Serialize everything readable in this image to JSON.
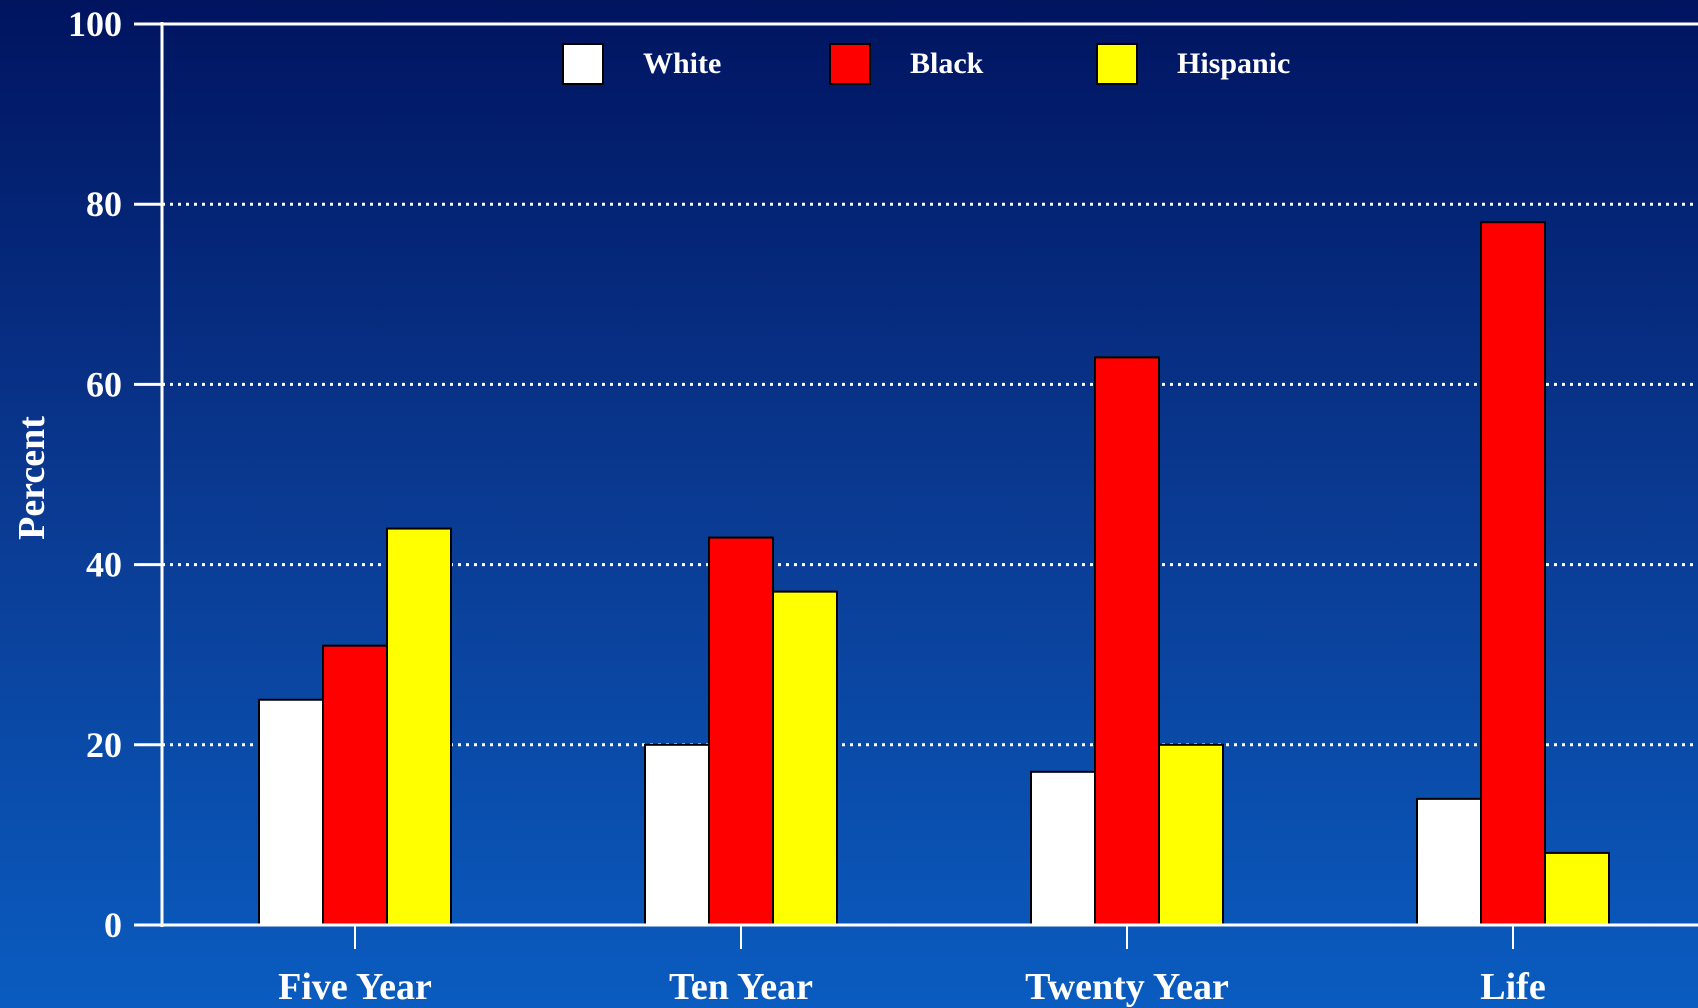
{
  "chart_data": {
    "type": "bar",
    "categories": [
      "Five Year",
      "Ten Year",
      "Twenty Year",
      "Life"
    ],
    "series": [
      {
        "name": "White",
        "color": "#ffffff",
        "values": [
          25,
          20,
          17,
          14
        ]
      },
      {
        "name": "Black",
        "color": "#ff0000",
        "values": [
          31,
          43,
          63,
          78
        ]
      },
      {
        "name": "Hispanic",
        "color": "#ffff00",
        "values": [
          44,
          37,
          20,
          8
        ]
      }
    ],
    "ylabel": "Percent",
    "xlabel": "",
    "ylim": [
      0,
      100
    ],
    "yticks": [
      "0",
      "20",
      "40",
      "60",
      "80",
      "100"
    ],
    "grid": "horizontal dotted",
    "legend": "top-center"
  }
}
